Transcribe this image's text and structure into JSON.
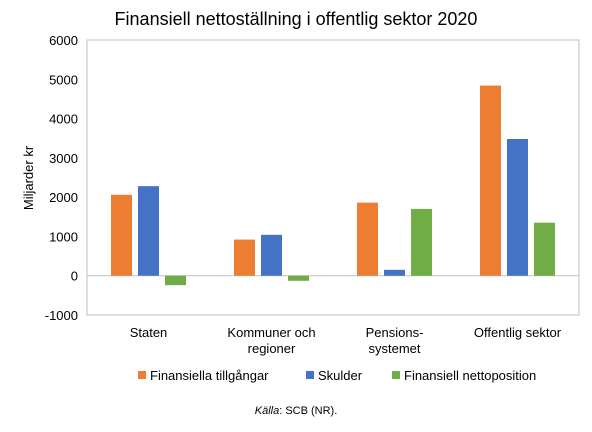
{
  "chart_data": {
    "type": "bar",
    "title": "Finansiell nettoställning i offentlig sektor 2020",
    "ylabel": "Miljarder kr",
    "xlabel": "",
    "ylim": [
      -1000,
      6000
    ],
    "yticks": [
      -1000,
      0,
      1000,
      2000,
      3000,
      4000,
      5000,
      6000
    ],
    "categories": [
      [
        "Staten"
      ],
      [
        "Kommuner och",
        "regioner"
      ],
      [
        "Pensions-",
        "systemet"
      ],
      [
        "Offentlig sektor"
      ]
    ],
    "series": [
      {
        "name": "Finansiella tillgångar",
        "color": "#ED7D31",
        "values": [
          2060,
          920,
          1860,
          4840
        ]
      },
      {
        "name": "Skulder",
        "color": "#4472C4",
        "values": [
          2280,
          1040,
          150,
          3480
        ]
      },
      {
        "name": "Finansiell nettoposition",
        "color": "#70AD47",
        "values": [
          -240,
          -130,
          1700,
          1350
        ]
      }
    ],
    "grid": false,
    "legend_position": "bottom",
    "source": {
      "italic": "Källa",
      "rest": ": SCB (NR)."
    }
  }
}
